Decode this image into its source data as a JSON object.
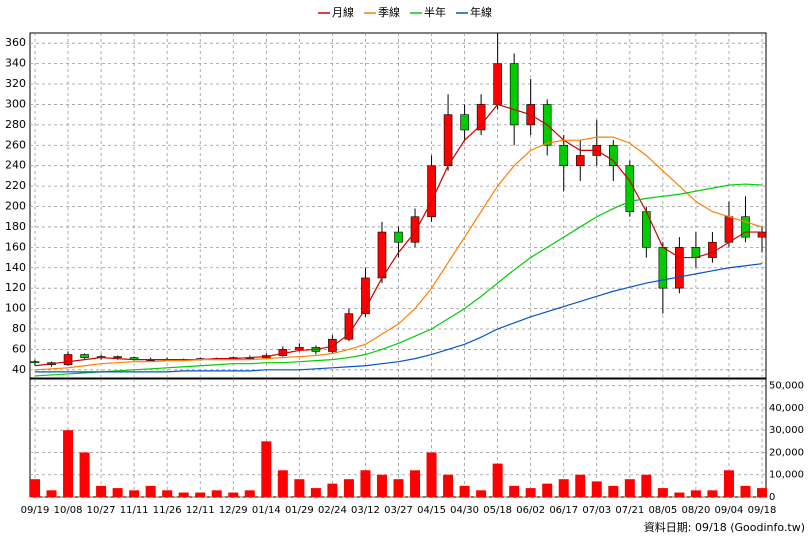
{
  "chart_data": {
    "type": "candlestick",
    "categories": [
      "09/19",
      null,
      "10/08",
      null,
      "10/27",
      null,
      "11/11",
      null,
      "11/26",
      null,
      "12/11",
      null,
      "12/29",
      null,
      "01/14",
      null,
      "01/29",
      null,
      "02/24",
      null,
      "03/12",
      null,
      "03/27",
      null,
      "04/15",
      null,
      "04/30",
      null,
      "05/18",
      null,
      "06/02",
      null,
      "06/17",
      null,
      "07/03",
      null,
      "07/21",
      null,
      "08/05",
      null,
      "08/20",
      null,
      "09/04",
      null,
      "09/18"
    ],
    "open": [
      48,
      47,
      45,
      55,
      52,
      53,
      52,
      50,
      50,
      50,
      50,
      51,
      51,
      52,
      52,
      54,
      60,
      62,
      58,
      70,
      95,
      130,
      175,
      165,
      190,
      240,
      290,
      275,
      300,
      340,
      280,
      300,
      260,
      240,
      250,
      260,
      240,
      195,
      160,
      120,
      160,
      150,
      165,
      190,
      170
    ],
    "high": [
      50,
      48,
      58,
      56,
      55,
      54,
      53,
      52,
      52,
      51,
      52,
      52,
      53,
      54,
      56,
      63,
      66,
      64,
      74,
      100,
      140,
      185,
      180,
      198,
      250,
      310,
      300,
      310,
      370,
      350,
      325,
      305,
      270,
      265,
      285,
      265,
      245,
      200,
      165,
      170,
      175,
      175,
      205,
      210,
      180
    ],
    "low": [
      44,
      43,
      44,
      50,
      50,
      50,
      49,
      49,
      49,
      49,
      49,
      50,
      50,
      51,
      51,
      53,
      58,
      55,
      56,
      68,
      92,
      125,
      150,
      160,
      185,
      235,
      265,
      270,
      295,
      260,
      270,
      250,
      215,
      225,
      240,
      225,
      190,
      150,
      95,
      115,
      140,
      145,
      160,
      165,
      155
    ],
    "close": [
      47,
      45,
      55,
      52,
      53,
      52,
      50,
      50,
      50,
      50,
      51,
      51,
      52,
      52,
      54,
      60,
      62,
      58,
      70,
      95,
      130,
      175,
      165,
      190,
      240,
      290,
      275,
      300,
      340,
      280,
      300,
      260,
      240,
      250,
      260,
      240,
      195,
      160,
      120,
      160,
      150,
      165,
      190,
      170,
      175
    ],
    "up_color": "#ff0000",
    "down_color": "#00cc00",
    "ylim": [
      32,
      370
    ],
    "yticks": [
      40,
      60,
      80,
      100,
      120,
      140,
      160,
      180,
      200,
      220,
      240,
      260,
      280,
      300,
      320,
      340,
      360
    ],
    "grid": true,
    "series": [
      {
        "name": "月線",
        "color": "#cc0000",
        "values": [
          44,
          46,
          48,
          50,
          52,
          51,
          50,
          50,
          50,
          50,
          50,
          51,
          51,
          52,
          53,
          56,
          59,
          60,
          63,
          75,
          100,
          130,
          155,
          175,
          205,
          240,
          265,
          280,
          300,
          295,
          290,
          280,
          265,
          255,
          255,
          245,
          225,
          195,
          160,
          150,
          150,
          155,
          165,
          175,
          175
        ]
      },
      {
        "name": "季線",
        "color": "#ff7f00",
        "values": [
          40,
          41,
          42,
          44,
          46,
          47,
          48,
          48,
          49,
          49,
          50,
          50,
          50,
          50,
          51,
          52,
          53,
          54,
          56,
          60,
          65,
          75,
          85,
          100,
          120,
          145,
          170,
          195,
          220,
          240,
          255,
          262,
          265,
          265,
          268,
          268,
          262,
          250,
          235,
          220,
          205,
          195,
          190,
          185,
          180
        ]
      },
      {
        "name": "半年",
        "color": "#00cc00",
        "values": [
          34,
          35,
          36,
          37,
          38,
          39,
          40,
          41,
          42,
          43,
          44,
          45,
          46,
          46,
          47,
          47,
          48,
          49,
          50,
          52,
          55,
          60,
          66,
          73,
          80,
          90,
          100,
          112,
          125,
          138,
          150,
          160,
          170,
          180,
          190,
          198,
          205,
          208,
          210,
          212,
          215,
          218,
          221,
          222,
          221
        ]
      },
      {
        "name": "年線",
        "color": "#0055cc",
        "values": [
          38,
          38,
          38,
          38,
          38,
          38,
          38,
          38,
          38,
          39,
          39,
          39,
          39,
          39,
          40,
          40,
          40,
          41,
          42,
          43,
          44,
          46,
          48,
          51,
          55,
          60,
          65,
          72,
          80,
          86,
          92,
          97,
          102,
          107,
          112,
          117,
          121,
          125,
          128,
          131,
          134,
          137,
          140,
          142,
          144
        ]
      }
    ],
    "volume": {
      "color": "#ff0000",
      "values": [
        8000,
        3000,
        30000,
        20000,
        5000,
        4000,
        3000,
        5000,
        3000,
        2000,
        2000,
        3000,
        2000,
        3000,
        25000,
        12000,
        8000,
        4000,
        6000,
        8000,
        12000,
        10000,
        8000,
        12000,
        20000,
        10000,
        5000,
        3000,
        15000,
        5000,
        4000,
        6000,
        8000,
        10000,
        7000,
        5000,
        8000,
        10000,
        4000,
        2000,
        3000,
        3000,
        12000,
        5000,
        4000
      ],
      "ylim": [
        0,
        53000
      ],
      "yticks": [
        0,
        {
          "value": 10000,
          "label": "10,000"
        },
        {
          "value": 20000,
          "label": "20,000"
        },
        {
          "value": 30000,
          "label": "30,000"
        },
        {
          "value": 40000,
          "label": "40,000"
        },
        {
          "value": 50000,
          "label": "50,000"
        }
      ]
    },
    "footer": "資料日期: 09/18 (Goodinfo.tw)"
  }
}
